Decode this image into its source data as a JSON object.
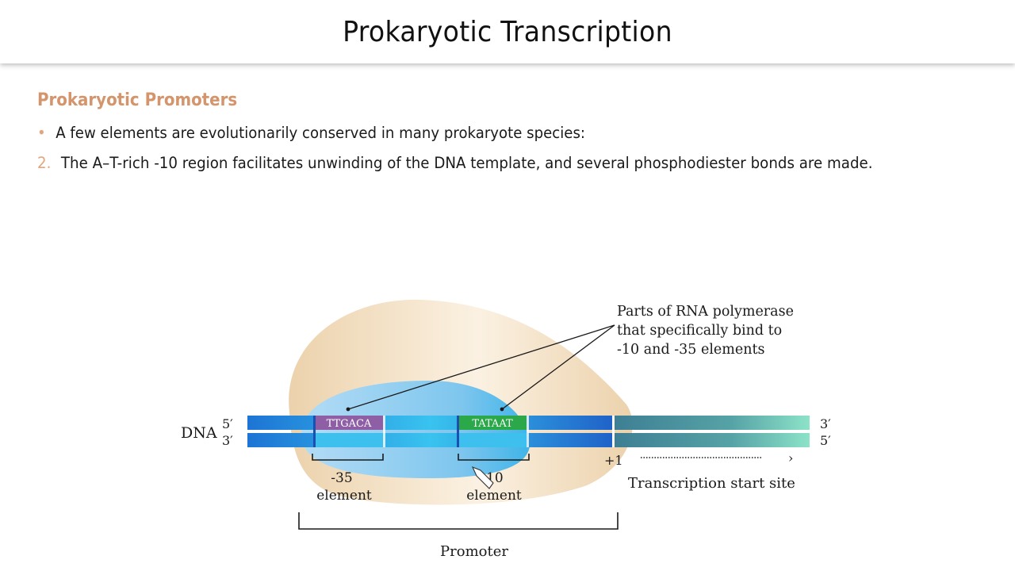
{
  "header": {
    "title": "Prokaryotic Transcription"
  },
  "content": {
    "section_title": "Prokaryotic Promoters",
    "bullet_marker": "•",
    "bullet_text": "A few elements are evolutionarily conserved in many prokaryote species:",
    "item_number": "2.",
    "item_text": "The A–T-rich -10 region facilitates unwinding of the DNA template, and several phosphodiester bonds are made."
  },
  "diagram": {
    "dna_label": "DNA",
    "left_top_end": "5′",
    "left_bottom_end": "3′",
    "right_top_end": "3′",
    "right_bottom_end": "5′",
    "seq_minus35": "TTGACA",
    "seq_minus10": "TATAAT",
    "minus35_label_line1": "-35",
    "minus35_label_line2": "element",
    "minus10_label_line1": "-10",
    "minus10_label_line2": "element",
    "plus1_label": "+1",
    "arrow_glyph": "›",
    "tss_label": "Transcription start site",
    "promoter_label": "Promoter",
    "callout_line1": "Parts of RNA polymerase",
    "callout_line2": "that specifically bind to",
    "callout_line3": "-10 and -35 elements",
    "colors": {
      "polymerase_outer": "#f1dcbd",
      "polymerase_inner": "#8fcdf0",
      "dna_blue": "#1f8fe0",
      "dna_teal": "#3f8f99",
      "box_minus35": "#8f5fa5",
      "box_minus10": "#2aa84a",
      "section_title": "#d4956c"
    }
  }
}
